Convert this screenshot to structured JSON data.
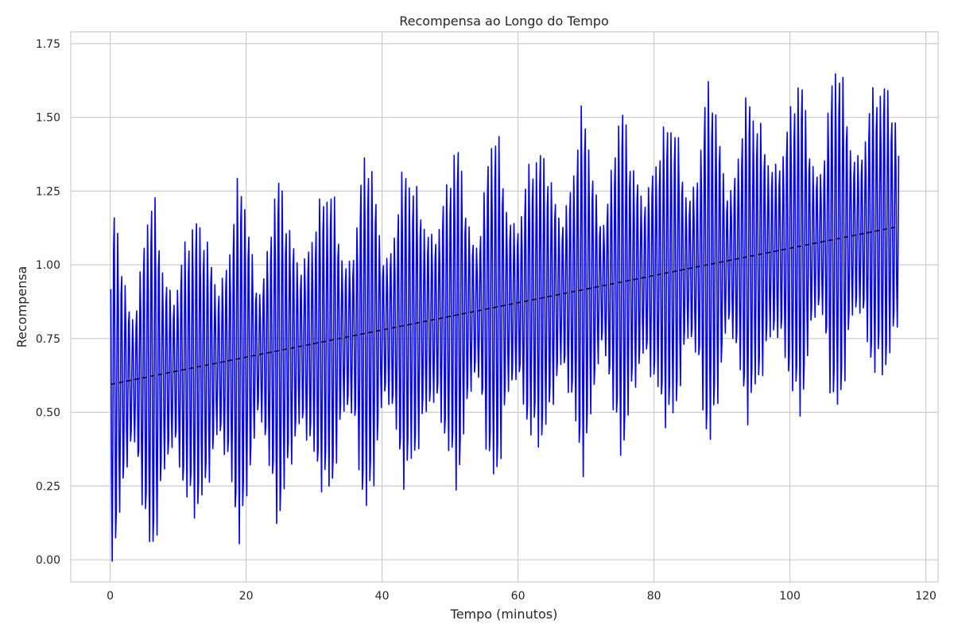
{
  "chart_data": {
    "type": "line",
    "title": "Recompensa ao Longo do Tempo",
    "xlabel": "Tempo (minutos)",
    "ylabel": "Recompensa",
    "xlim": [
      -5.8,
      121.8
    ],
    "ylim": [
      -0.075,
      1.79
    ],
    "xticks": [
      0,
      20,
      40,
      60,
      80,
      100,
      120
    ],
    "yticks": [
      0.0,
      0.25,
      0.5,
      0.75,
      1.0,
      1.25,
      1.5,
      1.75
    ],
    "xtick_labels": [
      "0",
      "20",
      "40",
      "60",
      "80",
      "100",
      "120"
    ],
    "ytick_labels": [
      "0.00",
      "0.25",
      "0.50",
      "0.75",
      "1.00",
      "1.25",
      "1.50",
      "1.75"
    ],
    "grid": true,
    "background": "#ffffff",
    "grid_color": "#cccccc",
    "series": [
      {
        "color": "#0000ff",
        "style": "solid",
        "x_start": 0.1,
        "x_step": 0.1,
        "n_points": 1160,
        "oscillation": {
          "period_minutes": 0.55,
          "envelope_period_minutes": 6.3,
          "envelope_min": 0.25,
          "envelope_max": 0.55
        }
      },
      {
        "color": "#000000",
        "style": "dashed",
        "x": [
          0.1,
          116
        ],
        "y": [
          0.595,
          1.13
        ]
      }
    ]
  }
}
